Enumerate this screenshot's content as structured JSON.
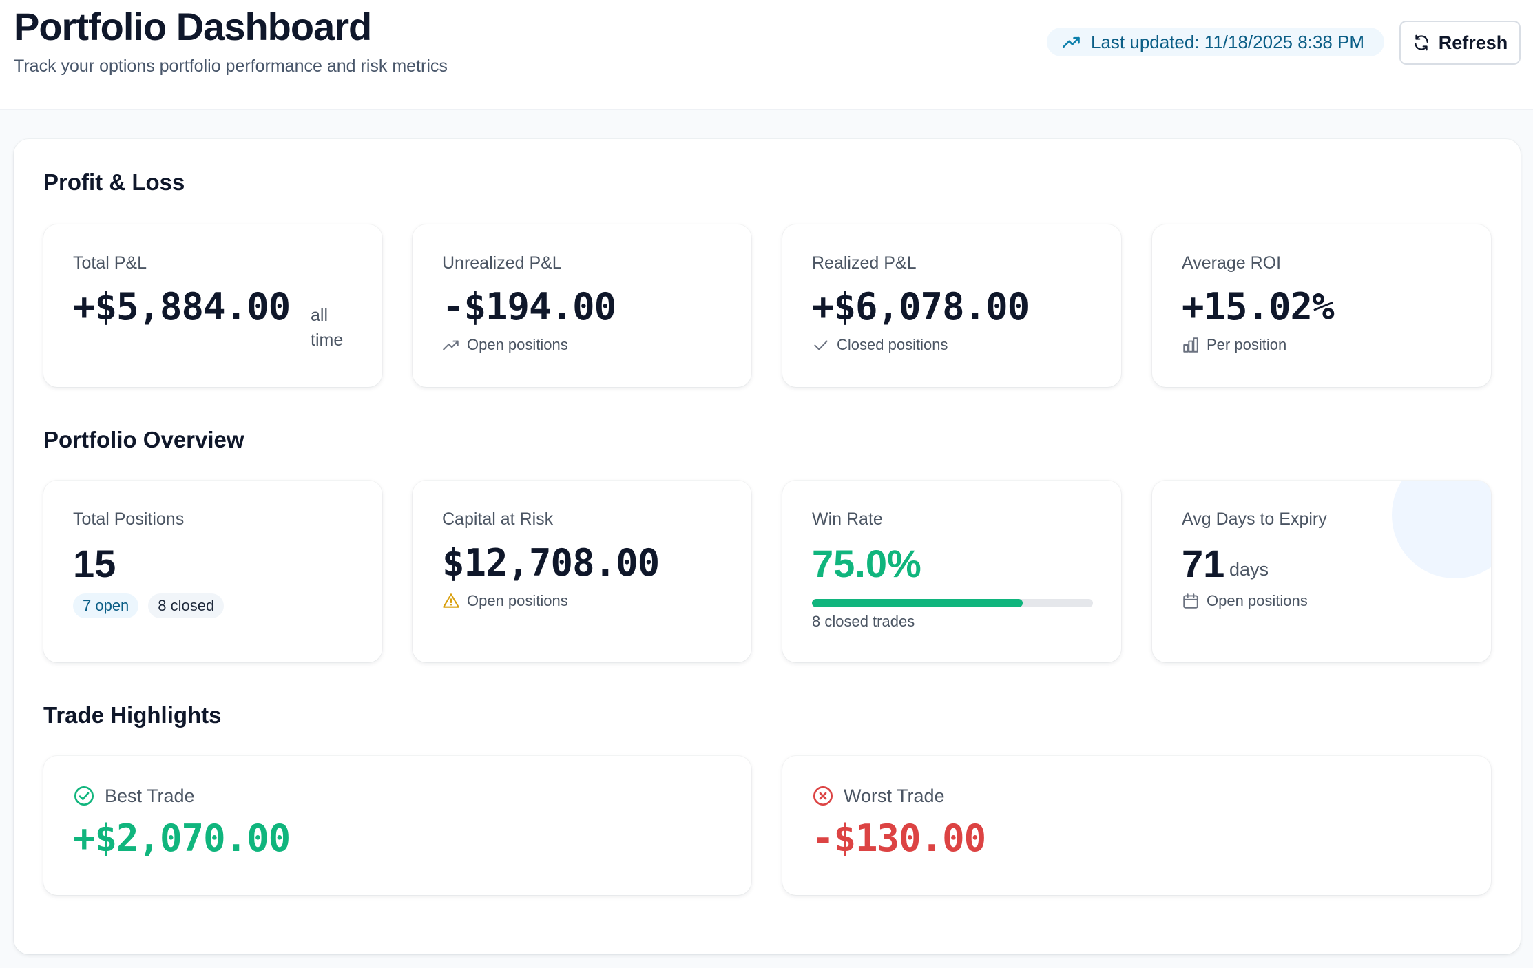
{
  "header": {
    "title": "Portfolio Dashboard",
    "subtitle": "Track your options portfolio performance and risk metrics",
    "last_updated": "Last updated: 11/18/2025 8:38 PM",
    "refresh_label": "Refresh"
  },
  "sections": {
    "pnl": "Profit & Loss",
    "overview": "Portfolio Overview",
    "highlights": "Trade Highlights"
  },
  "pnl": {
    "total": {
      "label": "Total P&L",
      "value": "+$5,884.00",
      "suffix_line1": "all",
      "suffix_line2": "time"
    },
    "unrealized": {
      "label": "Unrealized P&L",
      "value": "-$194.00",
      "note": "Open positions",
      "icon": "trending-up-icon"
    },
    "realized": {
      "label": "Realized P&L",
      "value": "+$6,078.00",
      "note": "Closed positions",
      "icon": "check-icon"
    },
    "roi": {
      "label": "Average ROI",
      "value": "+15.02%",
      "note": "Per position",
      "icon": "bar-chart-icon"
    }
  },
  "overview": {
    "positions": {
      "label": "Total Positions",
      "value": "15",
      "open_badge": "7 open",
      "closed_badge": "8 closed"
    },
    "capital": {
      "label": "Capital at Risk",
      "value": "$12,708.00",
      "note": "Open positions",
      "icon": "warning-icon"
    },
    "win_rate": {
      "label": "Win Rate",
      "value": "75.0%",
      "progress": 0.75,
      "caption": "8 closed trades"
    },
    "expiry": {
      "label": "Avg Days to Expiry",
      "value": "71",
      "suffix": "days",
      "note": "Open positions",
      "icon": "calendar-icon"
    }
  },
  "highlights": {
    "best": {
      "label": "Best Trade",
      "value": "+$2,070.00",
      "icon": "check-circle-icon"
    },
    "worst": {
      "label": "Worst Trade",
      "value": "-$130.00",
      "icon": "x-circle-icon"
    }
  },
  "colors": {
    "positive": "#10b57d",
    "negative": "#dc4343",
    "accent": "#0b5e86",
    "warning": "#d9a010"
  }
}
